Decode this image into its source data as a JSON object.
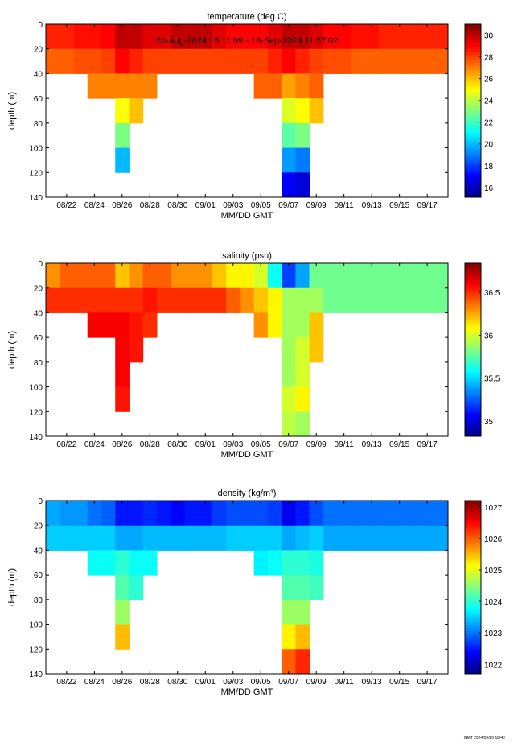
{
  "chart_data": [
    {
      "type": "heatmap",
      "title": "temperature (deg C)",
      "subtitle": "20-Aug-2024 15:11:09 - 18-Sep-2024 11:57:02",
      "xlabel": "MM/DD GMT",
      "ylabel": "depth (m)",
      "colormap": "jet",
      "y_reversed": true,
      "xlim": [
        20.5,
        49.5
      ],
      "ylim": [
        0,
        140
      ],
      "yticks": [
        0,
        20,
        40,
        60,
        80,
        100,
        120,
        140
      ],
      "xticks": [
        {
          "value": 22,
          "label": "08/22"
        },
        {
          "value": 24,
          "label": "08/24"
        },
        {
          "value": 26,
          "label": "08/26"
        },
        {
          "value": 28,
          "label": "08/28"
        },
        {
          "value": 30,
          "label": "08/30"
        },
        {
          "value": 32,
          "label": "09/01"
        },
        {
          "value": 34,
          "label": "09/03"
        },
        {
          "value": 36,
          "label": "09/05"
        },
        {
          "value": 38,
          "label": "09/07"
        },
        {
          "value": 40,
          "label": "09/09"
        },
        {
          "value": 42,
          "label": "09/11"
        },
        {
          "value": 44,
          "label": "09/13"
        },
        {
          "value": 46,
          "label": "09/15"
        },
        {
          "value": 48,
          "label": "09/17"
        }
      ],
      "clim": [
        15.1,
        31
      ],
      "cticks": [
        16,
        18,
        20,
        22,
        24,
        26,
        28,
        30
      ],
      "x": [
        21,
        22,
        23,
        24,
        25,
        26,
        27,
        28,
        29,
        30,
        31,
        32,
        33,
        34,
        35,
        36,
        37,
        38,
        39,
        40,
        41,
        42,
        43,
        44,
        45,
        46,
        47,
        48,
        49
      ],
      "depth": [
        10,
        30,
        50,
        70,
        90,
        110,
        130
      ],
      "values": [
        [
          28.5,
          28.5,
          28.8,
          28.8,
          29,
          30,
          30,
          29.5,
          29.5,
          30,
          30,
          30,
          29.5,
          29,
          29,
          29,
          29.5,
          30,
          30,
          29.5,
          29,
          29,
          28.8,
          28.8,
          28.5,
          28.5,
          28.5,
          28.5,
          28.5
        ],
        [
          27.5,
          27.5,
          27.8,
          27.8,
          28,
          29,
          28.5,
          28,
          28,
          28,
          28,
          28,
          28,
          28,
          28,
          28,
          28.5,
          29,
          28.5,
          28,
          27.8,
          27.8,
          27.5,
          27.5,
          27.5,
          27.5,
          27.5,
          27.5,
          27.5
        ],
        [
          null,
          null,
          null,
          27,
          27,
          27,
          27,
          27,
          null,
          null,
          null,
          null,
          null,
          null,
          null,
          27.5,
          27.5,
          26.5,
          27,
          27.5,
          null,
          null,
          null,
          null,
          null,
          null,
          null,
          null,
          null
        ],
        [
          null,
          null,
          null,
          null,
          null,
          25,
          26,
          null,
          null,
          null,
          null,
          null,
          null,
          null,
          null,
          null,
          null,
          24.5,
          25,
          26,
          null,
          null,
          null,
          null,
          null,
          null,
          null,
          null,
          null
        ],
        [
          null,
          null,
          null,
          null,
          null,
          23,
          null,
          null,
          null,
          null,
          null,
          null,
          null,
          null,
          null,
          null,
          null,
          22.5,
          23,
          null,
          null,
          null,
          null,
          null,
          null,
          null,
          null,
          null,
          null
        ],
        [
          null,
          null,
          null,
          null,
          null,
          20,
          null,
          null,
          null,
          null,
          null,
          null,
          null,
          null,
          null,
          null,
          null,
          19.5,
          19,
          null,
          null,
          null,
          null,
          null,
          null,
          null,
          null,
          null,
          null
        ],
        [
          null,
          null,
          null,
          null,
          null,
          null,
          null,
          null,
          null,
          null,
          null,
          null,
          null,
          null,
          null,
          null,
          null,
          17,
          16.5,
          null,
          null,
          null,
          null,
          null,
          null,
          null,
          null,
          null,
          null
        ]
      ]
    },
    {
      "type": "heatmap",
      "title": "salinity (psu)",
      "xlabel": "MM/DD GMT",
      "ylabel": "depth (m)",
      "colormap": "jet",
      "y_reversed": true,
      "xlim": [
        20.5,
        49.5
      ],
      "ylim": [
        0,
        140
      ],
      "yticks": [
        0,
        20,
        40,
        60,
        80,
        100,
        120,
        140
      ],
      "xticks": [
        {
          "value": 22,
          "label": "08/22"
        },
        {
          "value": 24,
          "label": "08/24"
        },
        {
          "value": 26,
          "label": "08/26"
        },
        {
          "value": 28,
          "label": "08/28"
        },
        {
          "value": 30,
          "label": "08/30"
        },
        {
          "value": 32,
          "label": "09/01"
        },
        {
          "value": 34,
          "label": "09/03"
        },
        {
          "value": 36,
          "label": "09/05"
        },
        {
          "value": 38,
          "label": "09/07"
        },
        {
          "value": 40,
          "label": "09/09"
        },
        {
          "value": 42,
          "label": "09/11"
        },
        {
          "value": 44,
          "label": "09/13"
        },
        {
          "value": 46,
          "label": "09/15"
        },
        {
          "value": 48,
          "label": "09/17"
        }
      ],
      "clim": [
        34.82,
        36.84
      ],
      "cticks": [
        35,
        35.5,
        36,
        36.5
      ],
      "x": [
        21,
        22,
        23,
        24,
        25,
        26,
        27,
        28,
        29,
        30,
        31,
        32,
        33,
        34,
        35,
        36,
        37,
        38,
        39,
        40,
        41,
        42,
        43,
        44,
        45,
        46,
        47,
        48,
        49
      ],
      "depth": [
        10,
        30,
        50,
        70,
        90,
        110,
        130
      ],
      "values": [
        [
          36.3,
          36.4,
          36.4,
          36.4,
          36.4,
          36.2,
          36.3,
          36.4,
          36.4,
          36.3,
          36.3,
          36.3,
          36.2,
          36.1,
          36.1,
          36.0,
          35.6,
          35.2,
          35.4,
          35.8,
          35.8,
          35.8,
          35.8,
          35.8,
          35.8,
          35.8,
          35.8,
          35.8,
          35.8
        ],
        [
          36.5,
          36.5,
          36.5,
          36.5,
          36.5,
          36.5,
          36.5,
          36.55,
          36.5,
          36.5,
          36.5,
          36.5,
          36.5,
          36.4,
          36.3,
          36.2,
          36.1,
          35.9,
          35.9,
          35.9,
          35.8,
          35.8,
          35.8,
          35.8,
          35.8,
          35.8,
          35.8,
          35.8,
          35.8
        ],
        [
          null,
          null,
          null,
          36.6,
          36.6,
          36.6,
          36.55,
          36.5,
          null,
          null,
          null,
          null,
          null,
          null,
          null,
          36.3,
          36.1,
          35.9,
          35.9,
          36.2,
          null,
          null,
          null,
          null,
          null,
          null,
          null,
          null,
          null
        ],
        [
          null,
          null,
          null,
          null,
          null,
          36.6,
          36.55,
          null,
          null,
          null,
          null,
          null,
          null,
          null,
          null,
          null,
          null,
          35.9,
          36.0,
          36.2,
          null,
          null,
          null,
          null,
          null,
          null,
          null,
          null,
          null
        ],
        [
          null,
          null,
          null,
          null,
          null,
          36.6,
          null,
          null,
          null,
          null,
          null,
          null,
          null,
          null,
          null,
          null,
          null,
          35.9,
          36.0,
          null,
          null,
          null,
          null,
          null,
          null,
          null,
          null,
          null,
          null
        ],
        [
          null,
          null,
          null,
          null,
          null,
          36.55,
          null,
          null,
          null,
          null,
          null,
          null,
          null,
          null,
          null,
          null,
          null,
          36.0,
          36.1,
          null,
          null,
          null,
          null,
          null,
          null,
          null,
          null,
          null,
          null
        ],
        [
          null,
          null,
          null,
          null,
          null,
          null,
          null,
          null,
          null,
          null,
          null,
          null,
          null,
          null,
          null,
          null,
          null,
          35.95,
          35.9,
          null,
          null,
          null,
          null,
          null,
          null,
          null,
          null,
          null,
          null
        ]
      ]
    },
    {
      "type": "heatmap",
      "title": "density (kg/m³)",
      "xlabel": "MM/DD GMT",
      "ylabel": "depth (m)",
      "colormap": "jet",
      "y_reversed": true,
      "xlim": [
        20.5,
        49.5
      ],
      "ylim": [
        0,
        140
      ],
      "yticks": [
        0,
        20,
        40,
        60,
        80,
        100,
        120,
        140
      ],
      "xticks": [
        {
          "value": 22,
          "label": "08/22"
        },
        {
          "value": 24,
          "label": "08/24"
        },
        {
          "value": 26,
          "label": "08/26"
        },
        {
          "value": 28,
          "label": "08/28"
        },
        {
          "value": 30,
          "label": "08/30"
        },
        {
          "value": 32,
          "label": "09/01"
        },
        {
          "value": 34,
          "label": "09/03"
        },
        {
          "value": 36,
          "label": "09/05"
        },
        {
          "value": 38,
          "label": "09/07"
        },
        {
          "value": 40,
          "label": "09/09"
        },
        {
          "value": 42,
          "label": "09/11"
        },
        {
          "value": 44,
          "label": "09/13"
        },
        {
          "value": 46,
          "label": "09/15"
        },
        {
          "value": 48,
          "label": "09/17"
        }
      ],
      "clim": [
        1021.7,
        1027.2
      ],
      "cticks": [
        1022,
        1023,
        1024,
        1025,
        1026,
        1027
      ],
      "x": [
        21,
        22,
        23,
        24,
        25,
        26,
        27,
        28,
        29,
        30,
        31,
        32,
        33,
        34,
        35,
        36,
        37,
        38,
        39,
        40,
        41,
        42,
        43,
        44,
        45,
        46,
        47,
        48,
        49
      ],
      "depth": [
        10,
        30,
        50,
        70,
        90,
        110,
        130
      ],
      "values": [
        [
          1023.3,
          1023.2,
          1023.2,
          1023.0,
          1022.9,
          1022.5,
          1022.5,
          1022.6,
          1022.5,
          1022.4,
          1022.5,
          1022.5,
          1022.7,
          1022.8,
          1022.8,
          1022.8,
          1022.7,
          1022.3,
          1022.5,
          1022.8,
          1023.0,
          1023.0,
          1023.0,
          1023.0,
          1023.0,
          1023.0,
          1023.0,
          1023.0,
          1023.0
        ],
        [
          1023.5,
          1023.5,
          1023.5,
          1023.5,
          1023.5,
          1023.3,
          1023.3,
          1023.4,
          1023.4,
          1023.4,
          1023.4,
          1023.4,
          1023.4,
          1023.5,
          1023.5,
          1023.5,
          1023.5,
          1023.3,
          1023.4,
          1023.5,
          1023.3,
          1023.3,
          1023.3,
          1023.3,
          1023.3,
          1023.3,
          1023.3,
          1023.3,
          1023.3
        ],
        [
          null,
          null,
          null,
          1023.8,
          1023.8,
          1024,
          1023.8,
          1023.8,
          null,
          null,
          null,
          null,
          null,
          null,
          null,
          1023.7,
          1023.8,
          1024,
          1024,
          1023.9,
          null,
          null,
          null,
          null,
          null,
          null,
          null,
          null,
          null
        ],
        [
          null,
          null,
          null,
          null,
          null,
          1024.2,
          1024,
          null,
          null,
          null,
          null,
          null,
          null,
          null,
          null,
          null,
          null,
          1024.2,
          1024.2,
          1024.1,
          null,
          null,
          null,
          null,
          null,
          null,
          null,
          null,
          null
        ],
        [
          null,
          null,
          null,
          null,
          null,
          1024.6,
          null,
          null,
          null,
          null,
          null,
          null,
          null,
          null,
          null,
          null,
          null,
          1024.6,
          1024.6,
          null,
          null,
          null,
          null,
          null,
          null,
          null,
          null,
          null,
          null
        ],
        [
          null,
          null,
          null,
          null,
          null,
          1025.5,
          null,
          null,
          null,
          null,
          null,
          null,
          null,
          null,
          null,
          null,
          null,
          1025.2,
          1025.5,
          null,
          null,
          null,
          null,
          null,
          null,
          null,
          null,
          null,
          null
        ],
        [
          null,
          null,
          null,
          null,
          null,
          null,
          null,
          null,
          null,
          null,
          null,
          null,
          null,
          null,
          null,
          null,
          null,
          1026,
          1026.3,
          null,
          null,
          null,
          null,
          null,
          null,
          null,
          null,
          null,
          null
        ]
      ]
    }
  ],
  "footer": "GMT 2024/09/20 18:42"
}
